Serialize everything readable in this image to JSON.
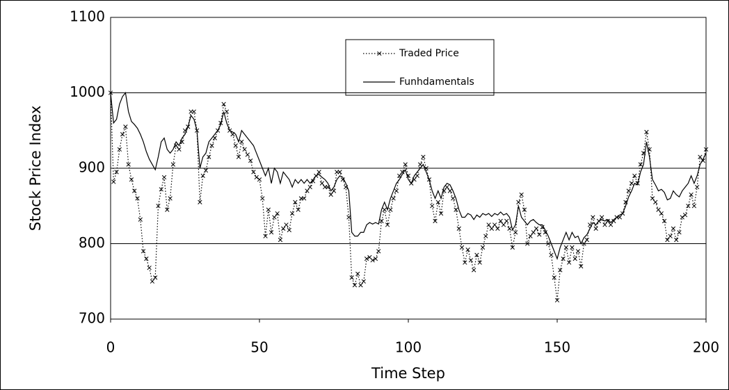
{
  "chart_data": {
    "type": "line",
    "xlabel": "Time Step",
    "ylabel": "Stock Price Index",
    "x": [
      0,
      1,
      2,
      3,
      4,
      5,
      6,
      7,
      8,
      9,
      10,
      11,
      12,
      13,
      14,
      15,
      16,
      17,
      18,
      19,
      20,
      21,
      22,
      23,
      24,
      25,
      26,
      27,
      28,
      29,
      30,
      31,
      32,
      33,
      34,
      35,
      36,
      37,
      38,
      39,
      40,
      41,
      42,
      43,
      44,
      45,
      46,
      47,
      48,
      49,
      50,
      51,
      52,
      53,
      54,
      55,
      56,
      57,
      58,
      59,
      60,
      61,
      62,
      63,
      64,
      65,
      66,
      67,
      68,
      69,
      70,
      71,
      72,
      73,
      74,
      75,
      76,
      77,
      78,
      79,
      80,
      81,
      82,
      83,
      84,
      85,
      86,
      87,
      88,
      89,
      90,
      91,
      92,
      93,
      94,
      95,
      96,
      97,
      98,
      99,
      100,
      101,
      102,
      103,
      104,
      105,
      106,
      107,
      108,
      109,
      110,
      111,
      112,
      113,
      114,
      115,
      116,
      117,
      118,
      119,
      120,
      121,
      122,
      123,
      124,
      125,
      126,
      127,
      128,
      129,
      130,
      131,
      132,
      133,
      134,
      135,
      136,
      137,
      138,
      139,
      140,
      141,
      142,
      143,
      144,
      145,
      146,
      147,
      148,
      149,
      150,
      151,
      152,
      153,
      154,
      155,
      156,
      157,
      158,
      159,
      160,
      161,
      162,
      163,
      164,
      165,
      166,
      167,
      168,
      169,
      170,
      171,
      172,
      173,
      174,
      175,
      176,
      177,
      178,
      179,
      180,
      181,
      182,
      183,
      184,
      185,
      186,
      187,
      188,
      189,
      190,
      191,
      192,
      193,
      194,
      195,
      196,
      197,
      198,
      199,
      200
    ],
    "series": [
      {
        "name": "Traded Price",
        "color": "#000000",
        "style": "dotted",
        "marker": "x",
        "values": [
          1000,
          882,
          895,
          925,
          945,
          955,
          905,
          885,
          870,
          860,
          832,
          790,
          780,
          768,
          750,
          755,
          850,
          872,
          888,
          845,
          860,
          905,
          930,
          925,
          935,
          950,
          955,
          975,
          975,
          950,
          855,
          890,
          897,
          915,
          930,
          940,
          950,
          960,
          985,
          975,
          950,
          945,
          930,
          915,
          935,
          925,
          918,
          910,
          895,
          888,
          885,
          860,
          810,
          845,
          815,
          835,
          840,
          805,
          820,
          825,
          818,
          840,
          855,
          845,
          860,
          860,
          870,
          875,
          883,
          890,
          895,
          880,
          875,
          875,
          865,
          870,
          895,
          895,
          885,
          875,
          835,
          755,
          745,
          760,
          745,
          750,
          780,
          782,
          778,
          780,
          790,
          830,
          845,
          825,
          845,
          860,
          870,
          890,
          895,
          905,
          890,
          880,
          885,
          890,
          905,
          915,
          900,
          885,
          850,
          830,
          855,
          840,
          870,
          875,
          870,
          860,
          845,
          820,
          795,
          775,
          792,
          778,
          765,
          785,
          775,
          795,
          810,
          825,
          820,
          825,
          820,
          830,
          825,
          830,
          820,
          795,
          815,
          855,
          865,
          845,
          800,
          810,
          815,
          820,
          812,
          822,
          815,
          800,
          785,
          755,
          725,
          765,
          780,
          795,
          775,
          795,
          780,
          790,
          770,
          800,
          805,
          825,
          835,
          820,
          830,
          835,
          825,
          830,
          825,
          830,
          835,
          835,
          840,
          855,
          870,
          880,
          890,
          880,
          905,
          920,
          948,
          925,
          860,
          855,
          845,
          840,
          830,
          805,
          810,
          820,
          805,
          815,
          835,
          838,
          850,
          865,
          850,
          875,
          915,
          910,
          925
        ]
      },
      {
        "name": "Funhdamentals",
        "color": "#000000",
        "style": "solid",
        "values": [
          1000,
          960,
          965,
          985,
          995,
          1000,
          975,
          962,
          958,
          953,
          945,
          935,
          922,
          912,
          905,
          898,
          915,
          935,
          940,
          925,
          920,
          925,
          935,
          930,
          940,
          945,
          955,
          970,
          965,
          950,
          900,
          915,
          920,
          935,
          940,
          945,
          950,
          958,
          975,
          960,
          950,
          948,
          945,
          935,
          950,
          945,
          940,
          935,
          930,
          920,
          910,
          900,
          890,
          900,
          880,
          900,
          895,
          880,
          895,
          890,
          885,
          875,
          885,
          880,
          885,
          880,
          885,
          880,
          885,
          890,
          892,
          888,
          885,
          880,
          870,
          875,
          885,
          890,
          888,
          880,
          870,
          815,
          810,
          810,
          815,
          815,
          825,
          828,
          826,
          828,
          826,
          845,
          855,
          845,
          860,
          870,
          880,
          885,
          892,
          898,
          885,
          880,
          890,
          895,
          900,
          905,
          895,
          885,
          870,
          860,
          870,
          860,
          875,
          880,
          878,
          870,
          860,
          845,
          835,
          835,
          840,
          838,
          832,
          838,
          835,
          840,
          838,
          840,
          836,
          840,
          838,
          842,
          838,
          840,
          835,
          818,
          825,
          850,
          835,
          830,
          825,
          830,
          832,
          828,
          825,
          825,
          818,
          810,
          800,
          790,
          780,
          795,
          805,
          815,
          805,
          815,
          808,
          810,
          800,
          808,
          812,
          820,
          828,
          825,
          830,
          832,
          830,
          832,
          828,
          832,
          835,
          838,
          840,
          850,
          862,
          870,
          880,
          878,
          895,
          905,
          935,
          915,
          885,
          878,
          870,
          872,
          868,
          858,
          860,
          870,
          865,
          862,
          870,
          875,
          880,
          890,
          880,
          890,
          905,
          912,
          920
        ]
      }
    ],
    "xlim": [
      0,
      200
    ],
    "xticks": [
      0,
      50,
      100,
      150,
      200
    ],
    "ylim": [
      700,
      1100
    ],
    "yticks": [
      700,
      800,
      900,
      1000,
      1100
    ],
    "grid": true
  }
}
